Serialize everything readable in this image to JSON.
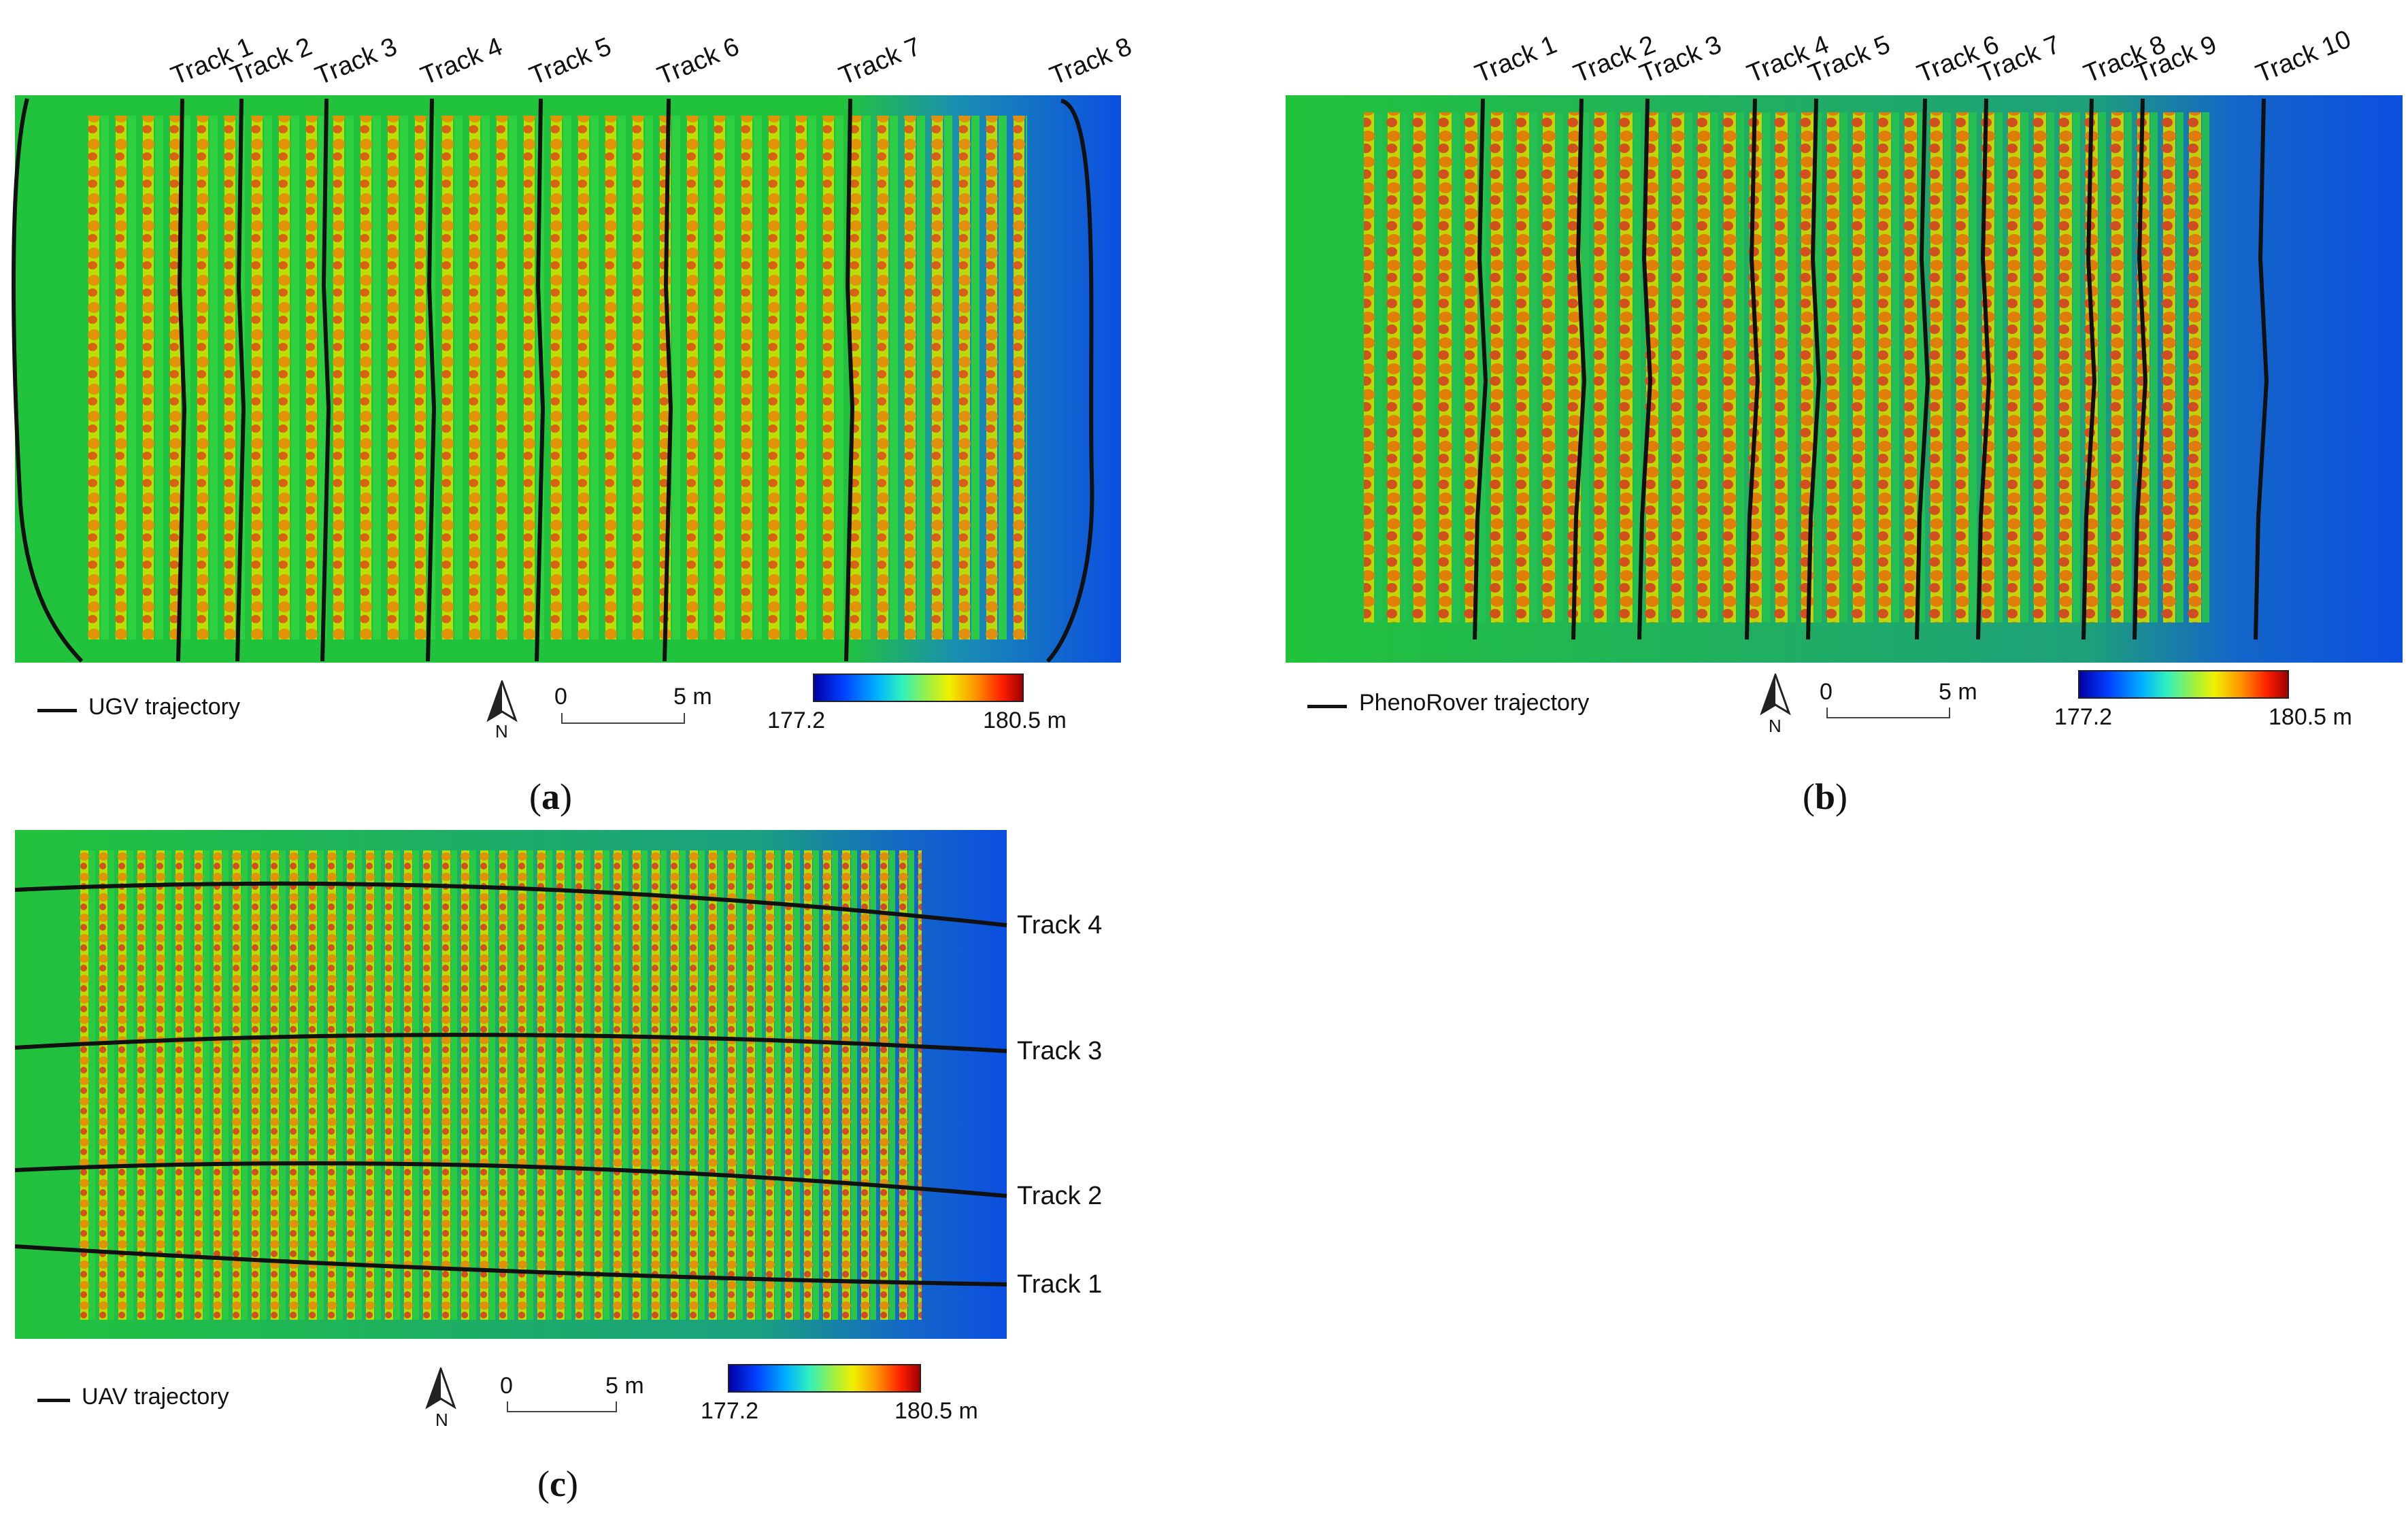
{
  "panels": {
    "a": {
      "caption_letter": "a",
      "legend_label": "UGV trajectory",
      "tracks": [
        "Track 1",
        "Track 2",
        "Track 3",
        "Track 4",
        "Track 5",
        "Track 6",
        "Track 7",
        "Track 8"
      ],
      "scale_start": "0",
      "scale_end": "5 m",
      "north_label": "N",
      "colorbar_min": "177.2",
      "colorbar_max": "180.5 m"
    },
    "b": {
      "caption_letter": "b",
      "legend_label": "PhenoRover trajectory",
      "tracks": [
        "Track 1",
        "Track 2",
        "Track 3",
        "Track 4",
        "Track 5",
        "Track 6",
        "Track 7",
        "Track 8",
        "Track 9",
        "Track 10"
      ],
      "scale_start": "0",
      "scale_end": "5 m",
      "north_label": "N",
      "colorbar_min": "177.2",
      "colorbar_max": "180.5 m"
    },
    "c": {
      "caption_letter": "c",
      "legend_label": "UAV trajectory",
      "tracks": [
        "Track 4",
        "Track 3",
        "Track 2",
        "Track 1"
      ],
      "scale_start": "0",
      "scale_end": "5 m",
      "north_label": "N",
      "colorbar_min": "177.2",
      "colorbar_max": "180.5 m"
    }
  },
  "colors": {
    "ground_green": "#1fc43a",
    "ground_blue": "#1060e0",
    "trajectory": "#111111"
  }
}
